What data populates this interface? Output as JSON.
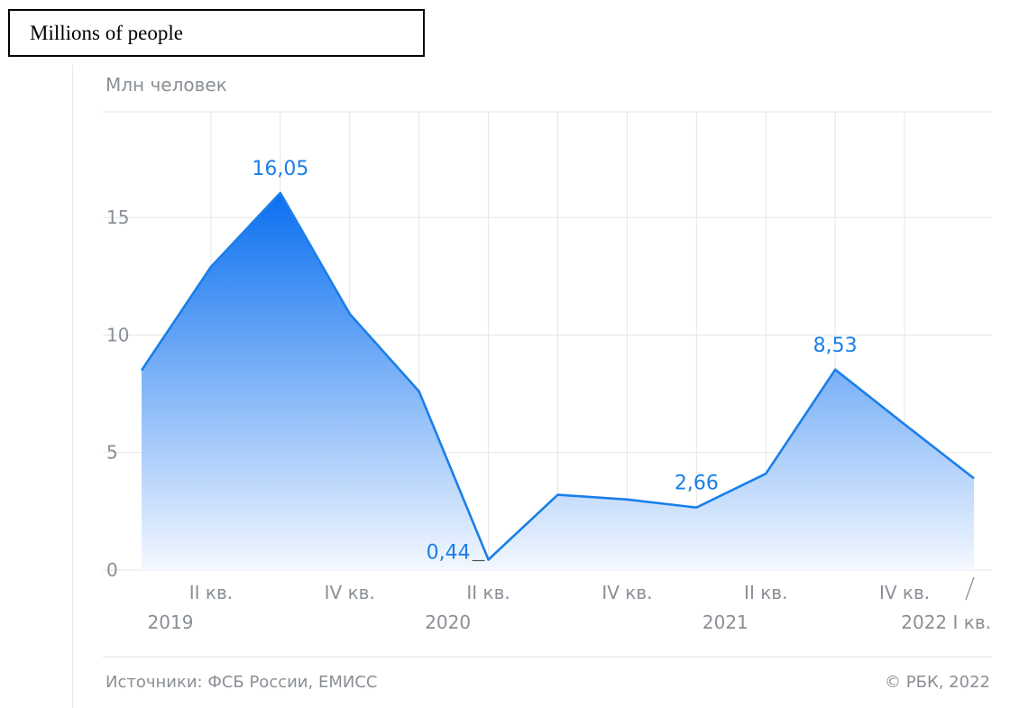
{
  "header": {
    "caption": "Millions of people"
  },
  "chart_data": {
    "type": "area",
    "unit_label": "Млн человек",
    "x": [
      "I кв. 2019",
      "II кв. 2019",
      "III кв. 2019",
      "IV кв. 2019",
      "I кв. 2020",
      "II кв. 2020",
      "III кв. 2020",
      "IV кв. 2020",
      "I кв. 2021",
      "II кв. 2021",
      "III кв. 2021",
      "IV кв. 2021",
      "I кв. 2022"
    ],
    "values": [
      8.5,
      12.9,
      16.05,
      10.9,
      7.6,
      0.44,
      3.2,
      3.0,
      2.66,
      4.1,
      8.53,
      6.2,
      3.9
    ],
    "data_labels": [
      {
        "index": 2,
        "text": "16,05"
      },
      {
        "index": 5,
        "text": "0,44"
      },
      {
        "index": 8,
        "text": "2,66"
      },
      {
        "index": 10,
        "text": "8,53"
      }
    ],
    "ylim": [
      0,
      19.5
    ],
    "yticks": [
      0,
      5,
      10,
      15
    ],
    "quarter_ticks": [
      {
        "index": 1,
        "text": "II кв."
      },
      {
        "index": 3,
        "text": "IV кв."
      },
      {
        "index": 5,
        "text": "II кв."
      },
      {
        "index": 7,
        "text": "IV кв."
      },
      {
        "index": 9,
        "text": "II кв."
      },
      {
        "index": 11,
        "text": "IV кв."
      }
    ],
    "year_labels": [
      {
        "index": 0,
        "text": "2019"
      },
      {
        "index": 4,
        "text": "2020"
      },
      {
        "index": 8,
        "text": "2021"
      }
    ],
    "last_label": "2022 I кв.",
    "grid": true,
    "colors": {
      "line": "#1a7fe8",
      "fill_top": "#0a6ff0",
      "fill_bottom": "#f4f8ff",
      "label": "#1a7fe8",
      "axis_text": "#8a8f95",
      "grid": "#e3e5e8"
    }
  },
  "footer": {
    "source": "Источники: ФСБ России, ЕМИСС",
    "copyright": "© РБК, 2022"
  }
}
